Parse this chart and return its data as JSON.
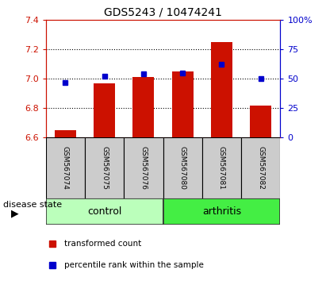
{
  "title": "GDS5243 / 10474241",
  "samples": [
    "GSM567074",
    "GSM567075",
    "GSM567076",
    "GSM567080",
    "GSM567081",
    "GSM567082"
  ],
  "red_values": [
    6.65,
    6.97,
    7.01,
    7.05,
    7.25,
    6.82
  ],
  "blue_values": [
    47,
    52,
    54,
    55,
    62,
    50
  ],
  "ylim_left": [
    6.6,
    7.4
  ],
  "ylim_right": [
    0,
    100
  ],
  "yticks_left": [
    6.6,
    6.8,
    7.0,
    7.2,
    7.4
  ],
  "yticks_right": [
    0,
    25,
    50,
    75,
    100
  ],
  "ytick_labels_right": [
    "0",
    "25",
    "50",
    "75",
    "100%"
  ],
  "bar_color": "#cc1100",
  "dot_color": "#0000cc",
  "base_value": 6.6,
  "control_color": "#bbffbb",
  "arthritis_color": "#44ee44",
  "label_box_color": "#cccccc",
  "bar_width": 0.55,
  "title_fontsize": 10,
  "tick_fontsize": 8,
  "sample_fontsize": 6.5,
  "group_fontsize": 9,
  "legend_fontsize": 7.5,
  "disease_state_fontsize": 8
}
